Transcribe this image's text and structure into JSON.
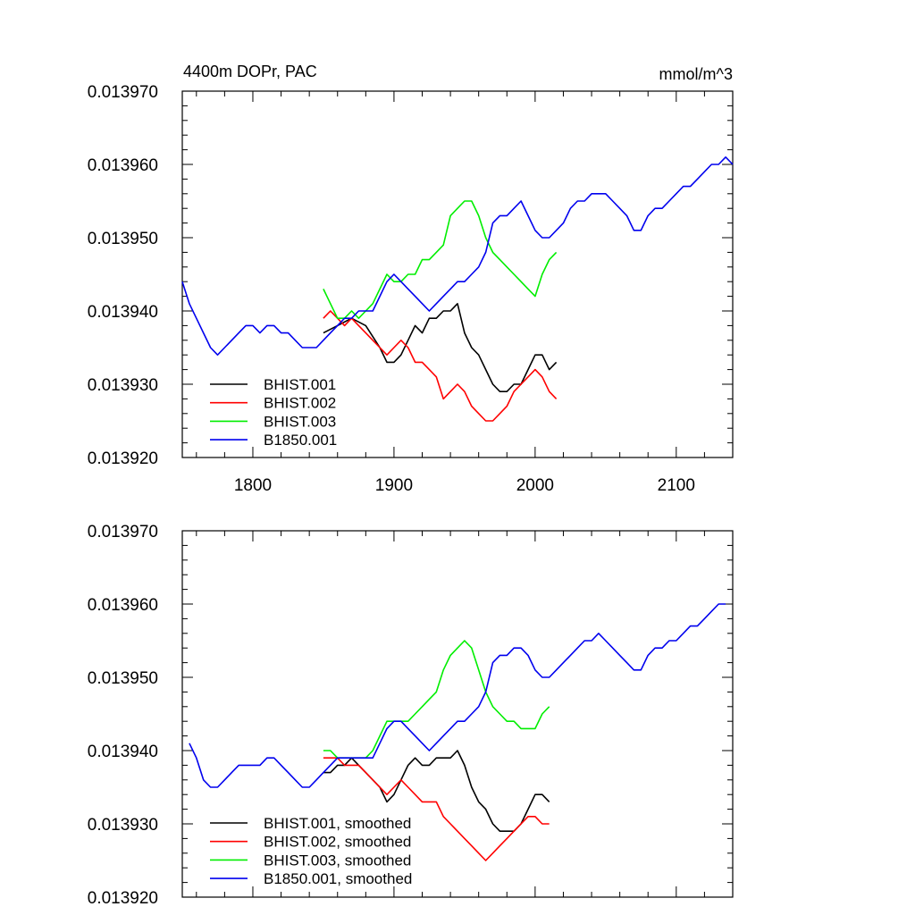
{
  "chart_data": [
    {
      "type": "line",
      "title": "4400m DOPr, PAC",
      "units": "mmol/m^3",
      "xlim": [
        1750,
        2140
      ],
      "ylim": [
        0.01392,
        0.01397
      ],
      "xticks": [
        "1800",
        "1900",
        "2000",
        "2100"
      ],
      "yticks": [
        "0.013970",
        "0.013960",
        "0.013950",
        "0.013940",
        "0.013930",
        "0.013920"
      ],
      "legend_position": "bottom-left",
      "series": [
        {
          "name": "BHIST.001",
          "color": "#000000",
          "x": [
            1850,
            1860,
            1870,
            1880,
            1890,
            1895,
            1900,
            1905,
            1910,
            1915,
            1920,
            1925,
            1930,
            1935,
            1940,
            1945,
            1950,
            1955,
            1960,
            1965,
            1970,
            1975,
            1980,
            1985,
            1990,
            1995,
            2000,
            2005,
            2010,
            2015
          ],
          "values": [
            0.013937,
            0.013938,
            0.013939,
            0.013938,
            0.013935,
            0.013933,
            0.013933,
            0.013934,
            0.013936,
            0.013938,
            0.013937,
            0.013939,
            0.013939,
            0.01394,
            0.01394,
            0.013941,
            0.013937,
            0.013935,
            0.013934,
            0.013932,
            0.01393,
            0.013929,
            0.013929,
            0.01393,
            0.01393,
            0.013932,
            0.013934,
            0.013934,
            0.013932,
            0.013933
          ]
        },
        {
          "name": "BHIST.002",
          "color": "#ff0000",
          "x": [
            1850,
            1855,
            1860,
            1865,
            1870,
            1875,
            1880,
            1885,
            1890,
            1895,
            1900,
            1905,
            1910,
            1915,
            1920,
            1925,
            1930,
            1935,
            1940,
            1945,
            1950,
            1955,
            1960,
            1965,
            1970,
            1975,
            1980,
            1985,
            1990,
            1995,
            2000,
            2005,
            2010,
            2015
          ],
          "values": [
            0.013939,
            0.01394,
            0.013939,
            0.013938,
            0.013939,
            0.013938,
            0.013937,
            0.013936,
            0.013935,
            0.013934,
            0.013935,
            0.013936,
            0.013935,
            0.013933,
            0.013933,
            0.013932,
            0.013931,
            0.013928,
            0.013929,
            0.01393,
            0.013929,
            0.013927,
            0.013926,
            0.013925,
            0.013925,
            0.013926,
            0.013927,
            0.013929,
            0.01393,
            0.013931,
            0.013932,
            0.013931,
            0.013929,
            0.013928
          ]
        },
        {
          "name": "BHIST.003",
          "color": "#00ee00",
          "x": [
            1850,
            1855,
            1860,
            1865,
            1870,
            1875,
            1880,
            1885,
            1890,
            1895,
            1900,
            1905,
            1910,
            1915,
            1920,
            1925,
            1930,
            1935,
            1940,
            1945,
            1950,
            1955,
            1960,
            1965,
            1970,
            1975,
            1980,
            1985,
            1990,
            1995,
            2000,
            2005,
            2010,
            2015
          ],
          "values": [
            0.013943,
            0.013941,
            0.013939,
            0.013939,
            0.01394,
            0.013939,
            0.01394,
            0.013941,
            0.013943,
            0.013945,
            0.013944,
            0.013944,
            0.013945,
            0.013945,
            0.013947,
            0.013947,
            0.013948,
            0.013949,
            0.013953,
            0.013954,
            0.013955,
            0.013955,
            0.013953,
            0.01395,
            0.013948,
            0.013947,
            0.013946,
            0.013945,
            0.013944,
            0.013943,
            0.013942,
            0.013945,
            0.013947,
            0.013948
          ]
        },
        {
          "name": "B1850.001",
          "color": "#0000ee",
          "x": [
            1750,
            1755,
            1760,
            1765,
            1770,
            1775,
            1780,
            1785,
            1790,
            1795,
            1800,
            1805,
            1810,
            1815,
            1820,
            1825,
            1830,
            1835,
            1840,
            1845,
            1850,
            1855,
            1860,
            1865,
            1870,
            1875,
            1880,
            1885,
            1890,
            1895,
            1900,
            1905,
            1910,
            1915,
            1920,
            1925,
            1930,
            1935,
            1940,
            1945,
            1950,
            1955,
            1960,
            1965,
            1970,
            1975,
            1980,
            1985,
            1990,
            1995,
            2000,
            2005,
            2010,
            2015,
            2020,
            2025,
            2030,
            2035,
            2040,
            2045,
            2050,
            2055,
            2060,
            2065,
            2070,
            2075,
            2080,
            2085,
            2090,
            2095,
            2100,
            2105,
            2110,
            2115,
            2120,
            2125,
            2130,
            2135,
            2140
          ],
          "values": [
            0.013944,
            0.013941,
            0.013939,
            0.013937,
            0.013935,
            0.013934,
            0.013935,
            0.013936,
            0.013937,
            0.013938,
            0.013938,
            0.013937,
            0.013938,
            0.013938,
            0.013937,
            0.013937,
            0.013936,
            0.013935,
            0.013935,
            0.013935,
            0.013936,
            0.013937,
            0.013938,
            0.013939,
            0.013939,
            0.01394,
            0.01394,
            0.01394,
            0.013942,
            0.013944,
            0.013945,
            0.013944,
            0.013943,
            0.013942,
            0.013941,
            0.01394,
            0.013941,
            0.013942,
            0.013943,
            0.013944,
            0.013944,
            0.013945,
            0.013946,
            0.013948,
            0.013952,
            0.013953,
            0.013953,
            0.013954,
            0.013955,
            0.013953,
            0.013951,
            0.01395,
            0.01395,
            0.013951,
            0.013952,
            0.013954,
            0.013955,
            0.013955,
            0.013956,
            0.013956,
            0.013956,
            0.013955,
            0.013954,
            0.013953,
            0.013951,
            0.013951,
            0.013953,
            0.013954,
            0.013954,
            0.013955,
            0.013956,
            0.013957,
            0.013957,
            0.013958,
            0.013959,
            0.01396,
            0.01396,
            0.013961,
            0.01396
          ]
        }
      ]
    },
    {
      "type": "line",
      "title": "",
      "xlim": [
        1750,
        2140
      ],
      "ylim": [
        0.01392,
        0.01397
      ],
      "xticks": [],
      "yticks": [
        "0.013970",
        "0.013960",
        "0.013950",
        "0.013940",
        "0.013930",
        "0.013920"
      ],
      "legend_position": "bottom-left",
      "series": [
        {
          "name": "BHIST.001, smoothed",
          "color": "#000000",
          "x": [
            1850,
            1855,
            1860,
            1865,
            1870,
            1875,
            1880,
            1885,
            1890,
            1895,
            1900,
            1905,
            1910,
            1915,
            1920,
            1925,
            1930,
            1935,
            1940,
            1945,
            1950,
            1955,
            1960,
            1965,
            1970,
            1975,
            1980,
            1985,
            1990,
            1995,
            2000,
            2005,
            2010
          ],
          "values": [
            0.013937,
            0.013937,
            0.013938,
            0.013938,
            0.013939,
            0.013938,
            0.013937,
            0.013936,
            0.013935,
            0.013933,
            0.013934,
            0.013936,
            0.013938,
            0.013939,
            0.013938,
            0.013938,
            0.013939,
            0.013939,
            0.013939,
            0.01394,
            0.013938,
            0.013935,
            0.013933,
            0.013932,
            0.01393,
            0.013929,
            0.013929,
            0.013929,
            0.01393,
            0.013932,
            0.013934,
            0.013934,
            0.013933
          ]
        },
        {
          "name": "BHIST.002, smoothed",
          "color": "#ff0000",
          "x": [
            1850,
            1855,
            1860,
            1865,
            1870,
            1875,
            1880,
            1885,
            1890,
            1895,
            1900,
            1905,
            1910,
            1915,
            1920,
            1925,
            1930,
            1935,
            1940,
            1945,
            1950,
            1955,
            1960,
            1965,
            1970,
            1975,
            1980,
            1985,
            1990,
            1995,
            2000,
            2005,
            2010
          ],
          "values": [
            0.013939,
            0.013939,
            0.013939,
            0.013938,
            0.013938,
            0.013938,
            0.013937,
            0.013936,
            0.013935,
            0.013934,
            0.013935,
            0.013936,
            0.013935,
            0.013934,
            0.013933,
            0.013933,
            0.013933,
            0.013931,
            0.01393,
            0.013929,
            0.013928,
            0.013927,
            0.013926,
            0.013925,
            0.013926,
            0.013927,
            0.013928,
            0.013929,
            0.01393,
            0.013931,
            0.013931,
            0.01393,
            0.01393
          ]
        },
        {
          "name": "BHIST.003, smoothed",
          "color": "#00ee00",
          "x": [
            1850,
            1855,
            1860,
            1865,
            1870,
            1875,
            1880,
            1885,
            1890,
            1895,
            1900,
            1905,
            1910,
            1915,
            1920,
            1925,
            1930,
            1935,
            1940,
            1945,
            1950,
            1955,
            1960,
            1965,
            1970,
            1975,
            1980,
            1985,
            1990,
            1995,
            2000,
            2005,
            2010
          ],
          "values": [
            0.01394,
            0.01394,
            0.013939,
            0.013939,
            0.013939,
            0.013939,
            0.013939,
            0.01394,
            0.013942,
            0.013944,
            0.013944,
            0.013944,
            0.013944,
            0.013945,
            0.013946,
            0.013947,
            0.013948,
            0.013951,
            0.013953,
            0.013954,
            0.013955,
            0.013954,
            0.013951,
            0.013948,
            0.013946,
            0.013945,
            0.013944,
            0.013944,
            0.013943,
            0.013943,
            0.013943,
            0.013945,
            0.013946
          ]
        },
        {
          "name": "B1850.001, smoothed",
          "color": "#0000ee",
          "x": [
            1755,
            1760,
            1765,
            1770,
            1775,
            1780,
            1785,
            1790,
            1795,
            1800,
            1805,
            1810,
            1815,
            1820,
            1825,
            1830,
            1835,
            1840,
            1845,
            1850,
            1855,
            1860,
            1865,
            1870,
            1875,
            1880,
            1885,
            1890,
            1895,
            1900,
            1905,
            1910,
            1915,
            1920,
            1925,
            1930,
            1935,
            1940,
            1945,
            1950,
            1955,
            1960,
            1965,
            1970,
            1975,
            1980,
            1985,
            1990,
            1995,
            2000,
            2005,
            2010,
            2015,
            2020,
            2025,
            2030,
            2035,
            2040,
            2045,
            2050,
            2055,
            2060,
            2065,
            2070,
            2075,
            2080,
            2085,
            2090,
            2095,
            2100,
            2105,
            2110,
            2115,
            2120,
            2125,
            2130,
            2135
          ],
          "values": [
            0.013941,
            0.013939,
            0.013936,
            0.013935,
            0.013935,
            0.013936,
            0.013937,
            0.013938,
            0.013938,
            0.013938,
            0.013938,
            0.013939,
            0.013939,
            0.013938,
            0.013937,
            0.013936,
            0.013935,
            0.013935,
            0.013936,
            0.013937,
            0.013938,
            0.013939,
            0.013939,
            0.013939,
            0.013939,
            0.013939,
            0.013939,
            0.013941,
            0.013943,
            0.013944,
            0.013944,
            0.013943,
            0.013942,
            0.013941,
            0.01394,
            0.013941,
            0.013942,
            0.013943,
            0.013944,
            0.013944,
            0.013945,
            0.013946,
            0.013948,
            0.013952,
            0.013953,
            0.013953,
            0.013954,
            0.013954,
            0.013953,
            0.013951,
            0.01395,
            0.01395,
            0.013951,
            0.013952,
            0.013953,
            0.013954,
            0.013955,
            0.013955,
            0.013956,
            0.013955,
            0.013954,
            0.013953,
            0.013952,
            0.013951,
            0.013951,
            0.013953,
            0.013954,
            0.013954,
            0.013955,
            0.013955,
            0.013956,
            0.013957,
            0.013957,
            0.013958,
            0.013959,
            0.01396,
            0.01396
          ]
        }
      ]
    }
  ]
}
